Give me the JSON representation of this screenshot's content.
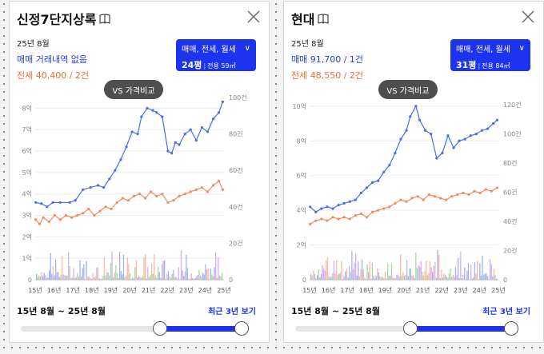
{
  "panels": [
    {
      "title": "신정7단지상록",
      "period": "25년 8월",
      "trade_text": "매매 거래내역 없음",
      "lease_text": "전세 40,400 / 2건",
      "filter_types": "매매, 전세, 월세",
      "filter_size": "24평",
      "filter_area": "전용 59㎡",
      "compare_label": "VS 가격비교",
      "range_label": "15년 8월 ~ 25년 8월",
      "recent_label": "최근 3년 보기",
      "y_left": [
        "0",
        "1억",
        "2억",
        "3억",
        "4억",
        "5억",
        "6억",
        "7억",
        "8억"
      ],
      "y_right": [
        "0",
        "20건",
        "40건",
        "60건",
        "80건",
        "100건"
      ],
      "x_ticks": [
        "15년",
        "16년",
        "17년",
        "18년",
        "19년",
        "20년",
        "21년",
        "22년",
        "23년",
        "24년",
        "25년"
      ],
      "slider_start": 0.63,
      "slider_end": 1.0,
      "chart_data": {
        "type": "line",
        "x_domain": [
          2015.67,
          2025.67
        ],
        "ylim": [
          0,
          8.5
        ],
        "ylim_right": [
          0,
          100
        ],
        "series": [
          {
            "name": "매매",
            "color": "#4a6cf0",
            "points": [
              [
                2015.7,
                3.6
              ],
              [
                2016.0,
                3.55
              ],
              [
                2016.3,
                3.4
              ],
              [
                2016.6,
                3.6
              ],
              [
                2017.0,
                3.6
              ],
              [
                2017.5,
                3.6
              ],
              [
                2017.8,
                3.7
              ],
              [
                2018.2,
                4.2
              ],
              [
                2018.6,
                4.3
              ],
              [
                2019.0,
                4.4
              ],
              [
                2019.3,
                4.3
              ],
              [
                2019.6,
                4.7
              ],
              [
                2019.9,
                5.1
              ],
              [
                2020.2,
                5.6
              ],
              [
                2020.5,
                6.2
              ],
              [
                2020.8,
                6.9
              ],
              [
                2021.1,
                6.8
              ],
              [
                2021.3,
                7.6
              ],
              [
                2021.6,
                8.0
              ],
              [
                2021.9,
                7.9
              ],
              [
                2022.1,
                7.8
              ],
              [
                2022.4,
                7.6
              ],
              [
                2022.7,
                6.0
              ],
              [
                2022.9,
                5.9
              ],
              [
                2023.1,
                6.4
              ],
              [
                2023.3,
                6.3
              ],
              [
                2023.6,
                6.8
              ],
              [
                2023.9,
                7.0
              ],
              [
                2024.2,
                6.5
              ],
              [
                2024.5,
                7.1
              ],
              [
                2024.8,
                6.9
              ],
              [
                2025.1,
                7.5
              ],
              [
                2025.4,
                7.8
              ],
              [
                2025.6,
                8.3
              ]
            ]
          },
          {
            "name": "전세",
            "color": "#f4895e",
            "points": [
              [
                2015.7,
                2.8
              ],
              [
                2015.9,
                2.6
              ],
              [
                2016.1,
                2.9
              ],
              [
                2016.4,
                2.7
              ],
              [
                2016.7,
                3.0
              ],
              [
                2017.0,
                2.8
              ],
              [
                2017.3,
                3.0
              ],
              [
                2017.6,
                2.9
              ],
              [
                2017.9,
                3.0
              ],
              [
                2018.2,
                3.1
              ],
              [
                2018.5,
                3.3
              ],
              [
                2018.8,
                3.0
              ],
              [
                2019.1,
                3.2
              ],
              [
                2019.4,
                3.4
              ],
              [
                2019.7,
                3.3
              ],
              [
                2020.0,
                3.6
              ],
              [
                2020.3,
                3.8
              ],
              [
                2020.6,
                3.7
              ],
              [
                2020.9,
                3.9
              ],
              [
                2021.2,
                4.0
              ],
              [
                2021.5,
                3.8
              ],
              [
                2021.8,
                4.1
              ],
              [
                2022.1,
                3.9
              ],
              [
                2022.4,
                4.0
              ],
              [
                2022.7,
                3.6
              ],
              [
                2023.0,
                3.7
              ],
              [
                2023.3,
                3.9
              ],
              [
                2023.6,
                4.0
              ],
              [
                2023.9,
                4.1
              ],
              [
                2024.2,
                4.2
              ],
              [
                2024.5,
                4.3
              ],
              [
                2024.8,
                4.1
              ],
              [
                2025.1,
                4.4
              ],
              [
                2025.4,
                4.6
              ],
              [
                2025.6,
                4.2
              ]
            ]
          }
        ]
      }
    },
    {
      "title": "현대",
      "period": "25년 8월",
      "trade_text": "매매 91,700 / 1건",
      "lease_text": "전세 48,550 / 2건",
      "filter_types": "매매, 전세, 월세",
      "filter_size": "31평",
      "filter_area": "전용 84㎡",
      "compare_label": "VS 가격비교",
      "range_label": "15년 8월 ~ 25년 8월",
      "recent_label": "최근 3년 보기",
      "y_left": [
        "0",
        "2억",
        "4억",
        "6억",
        "8억",
        "10억"
      ],
      "y_right": [
        "0",
        "20건",
        "40건",
        "60건",
        "80건",
        "100건",
        "120건"
      ],
      "x_ticks": [
        "15년",
        "16년",
        "17년",
        "18년",
        "19년",
        "20년",
        "21년",
        "22년",
        "23년",
        "24년",
        "25년"
      ],
      "slider_start": 0.52,
      "slider_end": 0.98,
      "chart_data": {
        "type": "line",
        "x_domain": [
          2015.67,
          2025.67
        ],
        "ylim": [
          0,
          10.5
        ],
        "ylim_right": [
          0,
          125
        ],
        "series": [
          {
            "name": "매매",
            "color": "#4a6cf0",
            "points": [
              [
                2015.7,
                4.2
              ],
              [
                2016.0,
                3.9
              ],
              [
                2016.3,
                4.1
              ],
              [
                2016.6,
                4.2
              ],
              [
                2016.9,
                4.1
              ],
              [
                2017.2,
                4.3
              ],
              [
                2017.5,
                4.4
              ],
              [
                2017.8,
                4.5
              ],
              [
                2018.1,
                4.6
              ],
              [
                2018.4,
                5.0
              ],
              [
                2018.7,
                5.3
              ],
              [
                2019.0,
                5.6
              ],
              [
                2019.3,
                5.7
              ],
              [
                2019.6,
                6.2
              ],
              [
                2019.9,
                6.6
              ],
              [
                2020.2,
                7.3
              ],
              [
                2020.5,
                8.1
              ],
              [
                2020.8,
                8.6
              ],
              [
                2021.0,
                9.4
              ],
              [
                2021.3,
                10.0
              ],
              [
                2021.5,
                9.2
              ],
              [
                2021.8,
                8.6
              ],
              [
                2022.1,
                8.4
              ],
              [
                2022.4,
                7.0
              ],
              [
                2022.7,
                7.3
              ],
              [
                2023.0,
                8.3
              ],
              [
                2023.3,
                7.6
              ],
              [
                2023.6,
                8.0
              ],
              [
                2023.9,
                8.1
              ],
              [
                2024.2,
                8.3
              ],
              [
                2024.5,
                8.4
              ],
              [
                2024.8,
                8.6
              ],
              [
                2025.1,
                8.7
              ],
              [
                2025.4,
                9.0
              ],
              [
                2025.6,
                9.2
              ]
            ]
          },
          {
            "name": "전세",
            "color": "#f4895e",
            "points": [
              [
                2015.7,
                3.2
              ],
              [
                2016.0,
                3.4
              ],
              [
                2016.3,
                3.5
              ],
              [
                2016.6,
                3.4
              ],
              [
                2016.9,
                3.6
              ],
              [
                2017.2,
                3.5
              ],
              [
                2017.5,
                3.6
              ],
              [
                2017.8,
                3.5
              ],
              [
                2018.1,
                3.7
              ],
              [
                2018.4,
                3.8
              ],
              [
                2018.7,
                3.6
              ],
              [
                2019.0,
                3.9
              ],
              [
                2019.3,
                4.0
              ],
              [
                2019.6,
                4.1
              ],
              [
                2019.9,
                4.2
              ],
              [
                2020.2,
                4.4
              ],
              [
                2020.5,
                4.6
              ],
              [
                2020.8,
                4.5
              ],
              [
                2021.1,
                4.7
              ],
              [
                2021.4,
                4.8
              ],
              [
                2021.7,
                4.6
              ],
              [
                2022.0,
                4.9
              ],
              [
                2022.3,
                4.8
              ],
              [
                2022.6,
                4.7
              ],
              [
                2022.9,
                4.6
              ],
              [
                2023.2,
                4.8
              ],
              [
                2023.5,
                4.9
              ],
              [
                2023.8,
                5.0
              ],
              [
                2024.1,
                4.9
              ],
              [
                2024.4,
                5.1
              ],
              [
                2024.7,
                5.0
              ],
              [
                2025.0,
                5.2
              ],
              [
                2025.3,
                5.1
              ],
              [
                2025.6,
                5.3
              ]
            ]
          }
        ]
      }
    }
  ]
}
